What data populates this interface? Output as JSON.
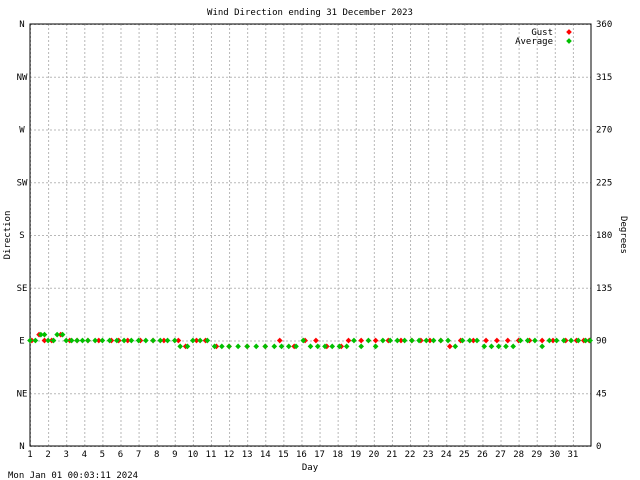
{
  "chart_data": {
    "type": "scatter",
    "title": "Wind Direction ending 31 December 2023",
    "xlabel": "Day",
    "ylabel_left": "Direction",
    "ylabel_right": "Degrees",
    "footer_timestamp": "Mon Jan 01 00:03:11 2024",
    "xlim": [
      1,
      32
    ],
    "ylim": [
      0,
      360
    ],
    "grid": true,
    "legend_position": "top-right",
    "x_ticks": [
      1,
      2,
      3,
      4,
      5,
      6,
      7,
      8,
      9,
      10,
      11,
      12,
      13,
      14,
      15,
      16,
      17,
      18,
      19,
      20,
      21,
      22,
      23,
      24,
      25,
      26,
      27,
      28,
      29,
      30,
      31
    ],
    "x_tick_labels": [
      "1",
      "2",
      "3",
      "4",
      "5",
      "6",
      "7",
      "8",
      "9",
      "10",
      "11",
      "12",
      "13",
      "14",
      "15",
      "16",
      "17",
      "18",
      "19",
      "20",
      "21",
      "22",
      "23",
      "24",
      "25",
      "26",
      "27",
      "28",
      "29",
      "30",
      "31"
    ],
    "y_ticks": [
      0,
      45,
      90,
      135,
      180,
      225,
      270,
      315,
      360
    ],
    "y_tick_labels_left": [
      "N",
      "NE",
      "E",
      "SE",
      "S",
      "SW",
      "W",
      "NW",
      "N"
    ],
    "y_tick_labels_right": [
      "0",
      "45",
      "90",
      "135",
      "180",
      "225",
      "270",
      "315",
      "360"
    ],
    "series": [
      {
        "name": "Gust",
        "color": "#ff0000",
        "points": [
          [
            1.1,
            90
          ],
          [
            1.5,
            95
          ],
          [
            1.8,
            90
          ],
          [
            2.2,
            90
          ],
          [
            2.7,
            95
          ],
          [
            3.2,
            90
          ],
          [
            3.6,
            90
          ],
          [
            4.2,
            90
          ],
          [
            4.8,
            90
          ],
          [
            5.5,
            90
          ],
          [
            5.9,
            90
          ],
          [
            6.4,
            90
          ],
          [
            7.1,
            90
          ],
          [
            7.8,
            90
          ],
          [
            8.4,
            90
          ],
          [
            9.2,
            90
          ],
          [
            9.6,
            85
          ],
          [
            10.2,
            90
          ],
          [
            10.7,
            90
          ],
          [
            11.3,
            85
          ],
          [
            12.0,
            85
          ],
          [
            13.0,
            85
          ],
          [
            14.0,
            85
          ],
          [
            14.8,
            90
          ],
          [
            15.6,
            85
          ],
          [
            16.2,
            90
          ],
          [
            16.8,
            90
          ],
          [
            17.4,
            85
          ],
          [
            18.2,
            85
          ],
          [
            18.6,
            90
          ],
          [
            19.3,
            90
          ],
          [
            20.1,
            90
          ],
          [
            20.8,
            90
          ],
          [
            21.5,
            90
          ],
          [
            22.1,
            90
          ],
          [
            22.6,
            90
          ],
          [
            23.1,
            90
          ],
          [
            23.7,
            90
          ],
          [
            24.2,
            85
          ],
          [
            24.8,
            90
          ],
          [
            25.5,
            90
          ],
          [
            26.2,
            90
          ],
          [
            26.8,
            90
          ],
          [
            27.4,
            90
          ],
          [
            28.0,
            90
          ],
          [
            28.6,
            90
          ],
          [
            29.3,
            90
          ],
          [
            29.9,
            90
          ],
          [
            30.6,
            90
          ],
          [
            31.2,
            90
          ],
          [
            31.6,
            90
          ],
          [
            31.9,
            90
          ]
        ]
      },
      {
        "name": "Average",
        "color": "#00c000",
        "points": [
          [
            1.0,
            90
          ],
          [
            1.3,
            90
          ],
          [
            1.6,
            95
          ],
          [
            1.8,
            95
          ],
          [
            2.0,
            90
          ],
          [
            2.3,
            90
          ],
          [
            2.5,
            95
          ],
          [
            2.8,
            95
          ],
          [
            3.0,
            90
          ],
          [
            3.3,
            90
          ],
          [
            3.6,
            90
          ],
          [
            3.9,
            90
          ],
          [
            4.2,
            90
          ],
          [
            4.6,
            90
          ],
          [
            5.0,
            90
          ],
          [
            5.4,
            90
          ],
          [
            5.8,
            90
          ],
          [
            6.2,
            90
          ],
          [
            6.6,
            90
          ],
          [
            7.0,
            90
          ],
          [
            7.4,
            90
          ],
          [
            7.8,
            90
          ],
          [
            8.2,
            90
          ],
          [
            8.6,
            90
          ],
          [
            9.0,
            90
          ],
          [
            9.3,
            85
          ],
          [
            9.7,
            85
          ],
          [
            10.0,
            90
          ],
          [
            10.4,
            90
          ],
          [
            10.8,
            90
          ],
          [
            11.2,
            85
          ],
          [
            11.6,
            85
          ],
          [
            12.0,
            85
          ],
          [
            12.5,
            85
          ],
          [
            13.0,
            85
          ],
          [
            13.5,
            85
          ],
          [
            14.0,
            85
          ],
          [
            14.5,
            85
          ],
          [
            14.9,
            85
          ],
          [
            15.3,
            85
          ],
          [
            15.7,
            85
          ],
          [
            16.1,
            90
          ],
          [
            16.5,
            85
          ],
          [
            16.9,
            85
          ],
          [
            17.3,
            85
          ],
          [
            17.7,
            85
          ],
          [
            18.1,
            85
          ],
          [
            18.5,
            85
          ],
          [
            18.9,
            90
          ],
          [
            19.3,
            85
          ],
          [
            19.7,
            90
          ],
          [
            20.1,
            85
          ],
          [
            20.5,
            90
          ],
          [
            20.9,
            90
          ],
          [
            21.3,
            90
          ],
          [
            21.7,
            90
          ],
          [
            22.1,
            90
          ],
          [
            22.5,
            90
          ],
          [
            22.9,
            90
          ],
          [
            23.3,
            90
          ],
          [
            23.7,
            90
          ],
          [
            24.1,
            90
          ],
          [
            24.5,
            85
          ],
          [
            24.9,
            90
          ],
          [
            25.3,
            90
          ],
          [
            25.7,
            90
          ],
          [
            26.1,
            85
          ],
          [
            26.5,
            85
          ],
          [
            26.9,
            85
          ],
          [
            27.3,
            85
          ],
          [
            27.7,
            85
          ],
          [
            28.1,
            90
          ],
          [
            28.5,
            90
          ],
          [
            28.9,
            90
          ],
          [
            29.3,
            85
          ],
          [
            29.7,
            90
          ],
          [
            30.1,
            90
          ],
          [
            30.5,
            90
          ],
          [
            30.9,
            90
          ],
          [
            31.3,
            90
          ],
          [
            31.7,
            90
          ],
          [
            31.95,
            90
          ]
        ]
      }
    ]
  }
}
